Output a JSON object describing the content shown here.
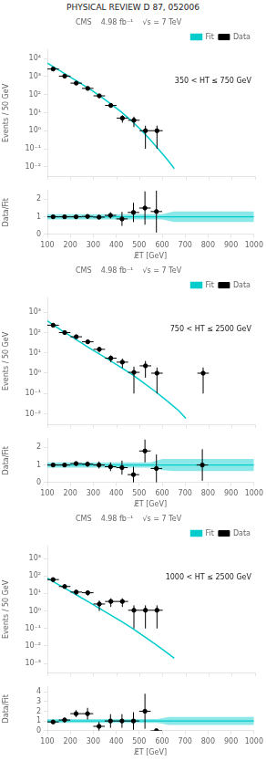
{
  "title": "PHYSICAL REVIEW D 87, 052006",
  "chart_data": [
    {
      "type": "scatter",
      "title": "CMS    4.98 fb⁻¹    √s = 7 TeV",
      "ylabel": "Events / 50 GeV",
      "annotation": "350 < HT ≤ 750 GeV",
      "log": "y",
      "legend": "upper right",
      "grid": false,
      "tick_labels": "y",
      "xlim": [
        100,
        1000
      ],
      "xticks": [
        100,
        200,
        300,
        400,
        500,
        600,
        700,
        800,
        900,
        1000
      ],
      "ylim": [
        0.003,
        30000
      ],
      "yticks": [
        {
          "value": 0.01,
          "label": "10⁻²"
        },
        {
          "value": 0.1,
          "label": "10⁻¹"
        },
        {
          "value": 1,
          "label": "10⁰"
        },
        {
          "value": 10,
          "label": "10¹"
        },
        {
          "value": 100,
          "label": "10²"
        },
        {
          "value": 1000,
          "label": "10³"
        },
        {
          "value": 10000,
          "label": "10⁴"
        }
      ],
      "series": [
        {
          "name": "Fit",
          "type": "line",
          "color": "#00CCCC",
          "x": [
            100,
            130,
            160,
            190,
            220,
            260,
            300,
            340,
            380,
            420,
            460,
            500,
            540,
            580,
            620,
            650
          ],
          "values": [
            5500,
            3200,
            1900,
            1100,
            640,
            310,
            145,
            65,
            27,
            11,
            4.0,
            1.3,
            0.38,
            0.1,
            0.025,
            0.008
          ]
        },
        {
          "name": "Data",
          "type": "scatter",
          "color": "black",
          "x": [
            125,
            175,
            225,
            275,
            325,
            375,
            425,
            475,
            525,
            575
          ],
          "values": [
            2600,
            1050,
            430,
            220,
            85,
            25,
            5.0,
            3.8,
            1.0,
            1.0
          ],
          "y_err_low": [
            120,
            55,
            28,
            18,
            11,
            4.5,
            2.2,
            2.2,
            0.9,
            0.9
          ],
          "y_err_high": [
            120,
            55,
            28,
            18,
            11,
            4.5,
            2.2,
            2.2,
            0.9,
            0.9
          ],
          "x_err": [
            25,
            25,
            25,
            25,
            25,
            25,
            25,
            25,
            25,
            25
          ]
        }
      ]
    },
    {
      "type": "scatter",
      "xlabel": "E̸T [GeV]",
      "ylabel": "Data/Fit",
      "grid": false,
      "xlim": [
        100,
        1000
      ],
      "xticks": [
        100,
        200,
        300,
        400,
        500,
        600,
        700,
        800,
        900,
        1000
      ],
      "ylim": [
        0,
        2.5
      ],
      "yticks": [
        0,
        1,
        2
      ],
      "series": [
        {
          "type": "band",
          "color": "#00CCCC",
          "x": [
            100,
            600,
            650,
            700,
            750,
            800,
            850,
            900,
            950,
            1000
          ],
          "low": [
            0.85,
            0.85,
            0.7,
            0.7,
            0.7,
            0.7,
            0.7,
            0.7,
            0.7,
            0.7
          ],
          "high": [
            1.15,
            1.15,
            1.3,
            1.3,
            1.3,
            1.3,
            1.3,
            1.3,
            1.3,
            1.3
          ]
        },
        {
          "type": "hline",
          "color": "#00CCCC",
          "values": [
            1.0
          ]
        },
        {
          "type": "scatter",
          "color": "black",
          "x": [
            125,
            175,
            225,
            275,
            325,
            375,
            425,
            475,
            525,
            575
          ],
          "values": [
            1.0,
            1.0,
            1.0,
            1.02,
            0.98,
            1.08,
            0.88,
            1.25,
            1.5,
            1.3
          ],
          "y_err_low": [
            0.05,
            0.05,
            0.06,
            0.08,
            0.12,
            0.18,
            0.4,
            0.55,
            0.95,
            1.2
          ],
          "y_err_high": [
            0.05,
            0.05,
            0.06,
            0.08,
            0.12,
            0.18,
            0.4,
            0.55,
            0.95,
            1.2
          ],
          "x_err": [
            25,
            25,
            25,
            25,
            25,
            25,
            25,
            25,
            25,
            25
          ]
        }
      ]
    },
    {
      "type": "scatter",
      "title": "CMS    4.98 fb⁻¹    √s = 7 TeV",
      "ylabel": "Events / 50 GeV",
      "annotation": "750 < HT ≤ 2500 GeV",
      "log": "y",
      "legend": "upper right",
      "grid": false,
      "tick_labels": "y",
      "xlim": [
        100,
        1000
      ],
      "xticks": [
        100,
        200,
        300,
        400,
        500,
        600,
        700,
        800,
        900,
        1000
      ],
      "ylim": [
        0.003,
        5000
      ],
      "yticks": [
        {
          "value": 0.01,
          "label": "10⁻²"
        },
        {
          "value": 0.1,
          "label": "10⁻¹"
        },
        {
          "value": 1,
          "label": "10⁰"
        },
        {
          "value": 10,
          "label": "10¹"
        },
        {
          "value": 100,
          "label": "10²"
        },
        {
          "value": 1000,
          "label": "10³"
        }
      ],
      "series": [
        {
          "name": "Fit",
          "type": "line",
          "color": "#00CCCC",
          "x": [
            100,
            130,
            160,
            200,
            240,
            280,
            320,
            370,
            420,
            470,
            520,
            570,
            620,
            670,
            700
          ],
          "values": [
            380,
            220,
            130,
            68,
            35,
            18,
            9.5,
            4.3,
            1.9,
            0.82,
            0.32,
            0.12,
            0.042,
            0.014,
            0.006
          ]
        },
        {
          "name": "Data",
          "type": "scatter",
          "color": "black",
          "x": [
            125,
            175,
            225,
            275,
            325,
            375,
            425,
            475,
            525,
            575,
            775
          ],
          "values": [
            230,
            100,
            62,
            35,
            15,
            5.5,
            3.5,
            1.1,
            2.3,
            1.0,
            1.0
          ],
          "y_err_low": [
            20,
            12,
            9,
            6.5,
            4.5,
            2.0,
            1.7,
            1.0,
            1.7,
            0.9,
            0.9
          ],
          "y_err_high": [
            20,
            12,
            9,
            6.5,
            4.5,
            2.0,
            1.7,
            1.0,
            1.7,
            0.9,
            0.9
          ],
          "x_err": [
            25,
            25,
            25,
            25,
            25,
            25,
            25,
            25,
            25,
            25,
            25
          ]
        }
      ]
    },
    {
      "type": "scatter",
      "xlabel": "E̸T [GeV]",
      "ylabel": "Data/Fit",
      "grid": false,
      "xlim": [
        100,
        1000
      ],
      "xticks": [
        100,
        200,
        300,
        400,
        500,
        600,
        700,
        800,
        900,
        1000
      ],
      "ylim": [
        0,
        2.5
      ],
      "yticks": [
        0,
        1,
        2
      ],
      "series": [
        {
          "type": "band",
          "color": "#00CCCC",
          "x": [
            100,
            550,
            600,
            650,
            700,
            750,
            800,
            850,
            900,
            950,
            1000
          ],
          "low": [
            0.85,
            0.85,
            0.7,
            0.65,
            0.65,
            0.65,
            0.65,
            0.65,
            0.65,
            0.65,
            0.65
          ],
          "high": [
            1.15,
            1.15,
            1.35,
            1.35,
            1.35,
            1.35,
            1.35,
            1.35,
            1.35,
            1.35,
            1.35
          ]
        },
        {
          "type": "hline",
          "color": "#00CCCC",
          "values": [
            1.0
          ]
        },
        {
          "type": "scatter",
          "color": "black",
          "x": [
            125,
            175,
            225,
            275,
            325,
            375,
            425,
            475,
            525,
            575,
            775
          ],
          "values": [
            1.0,
            1.0,
            1.08,
            1.05,
            1.0,
            0.9,
            0.85,
            0.45,
            1.8,
            0.8,
            1.0
          ],
          "y_err_low": [
            0.07,
            0.1,
            0.12,
            0.15,
            0.2,
            0.25,
            0.4,
            0.45,
            0.65,
            0.8,
            0.9
          ],
          "y_err_high": [
            0.07,
            0.1,
            0.12,
            0.15,
            0.2,
            0.25,
            0.4,
            0.45,
            0.65,
            0.8,
            0.9
          ],
          "x_err": [
            25,
            25,
            25,
            25,
            25,
            25,
            25,
            25,
            25,
            25,
            25
          ]
        }
      ]
    },
    {
      "type": "scatter",
      "title": "CMS    4.98 fb⁻¹    √s = 7 TeV",
      "ylabel": "Events / 50 GeV",
      "annotation": "1000 < HT ≤ 2500 GeV",
      "log": "y",
      "legend": "upper right",
      "grid": false,
      "tick_labels": "y",
      "xlim": [
        100,
        1000
      ],
      "xticks": [
        100,
        200,
        300,
        400,
        500,
        600,
        700,
        800,
        900,
        1000
      ],
      "ylim": [
        0.0003,
        5000
      ],
      "yticks": [
        {
          "value": 0.001,
          "label": "10⁻³"
        },
        {
          "value": 0.01,
          "label": "10⁻²"
        },
        {
          "value": 0.1,
          "label": "10⁻¹"
        },
        {
          "value": 1,
          "label": "10⁰"
        },
        {
          "value": 10,
          "label": "10¹"
        },
        {
          "value": 100,
          "label": "10²"
        },
        {
          "value": 1000,
          "label": "10³"
        }
      ],
      "series": [
        {
          "name": "Fit",
          "type": "line",
          "color": "#00CCCC",
          "x": [
            100,
            130,
            160,
            200,
            240,
            280,
            320,
            370,
            420,
            470,
            520,
            570,
            620,
            650
          ],
          "values": [
            75,
            44,
            26,
            13,
            6.5,
            3.2,
            1.55,
            0.64,
            0.26,
            0.098,
            0.035,
            0.012,
            0.004,
            0.002
          ]
        },
        {
          "name": "Data",
          "type": "scatter",
          "color": "black",
          "x": [
            125,
            175,
            225,
            275,
            325,
            375,
            425,
            475,
            525,
            575
          ],
          "values": [
            62,
            25,
            12,
            11,
            2.5,
            3.5,
            3.5,
            1.1,
            1.1,
            1.1
          ],
          "y_err_low": [
            11,
            5.5,
            4.0,
            3.5,
            1.5,
            1.8,
            1.8,
            1.0,
            1.0,
            1.0
          ],
          "y_err_high": [
            11,
            5.5,
            4.0,
            3.5,
            1.5,
            1.8,
            1.8,
            1.0,
            1.0,
            1.0
          ],
          "x_err": [
            25,
            25,
            25,
            25,
            25,
            25,
            25,
            25,
            25,
            25
          ]
        }
      ]
    },
    {
      "type": "scatter",
      "xlabel": "E̸T [GeV]",
      "ylabel": "Data/Fit",
      "grid": false,
      "xlim": [
        100,
        1000
      ],
      "xticks": [
        100,
        200,
        300,
        400,
        500,
        600,
        700,
        800,
        900,
        1000
      ],
      "ylim": [
        0,
        4.5
      ],
      "yticks": [
        0,
        1,
        2,
        3,
        4
      ],
      "series": [
        {
          "type": "band",
          "color": "#00CCCC",
          "x": [
            100,
            580,
            630,
            680,
            730,
            780,
            830,
            880,
            930,
            980,
            1000
          ],
          "low": [
            0.8,
            0.8,
            0.6,
            0.6,
            0.6,
            0.6,
            0.6,
            0.6,
            0.6,
            0.6,
            0.6
          ],
          "high": [
            1.2,
            1.2,
            1.4,
            1.4,
            1.4,
            1.4,
            1.4,
            1.4,
            1.4,
            1.4,
            1.4
          ]
        },
        {
          "type": "hline",
          "color": "#00CCCC",
          "values": [
            1.0
          ]
        },
        {
          "type": "scatter",
          "color": "black",
          "x": [
            125,
            175,
            225,
            275,
            325,
            375,
            425,
            475,
            525,
            575
          ],
          "values": [
            0.9,
            1.1,
            1.75,
            1.75,
            0.45,
            1.0,
            1.0,
            1.0,
            2.0,
            0.0
          ],
          "y_err_low": [
            0.15,
            0.25,
            0.35,
            0.6,
            0.45,
            0.7,
            0.7,
            0.9,
            1.8,
            0.0
          ],
          "y_err_high": [
            0.15,
            0.25,
            0.35,
            0.6,
            0.45,
            0.7,
            0.7,
            0.9,
            1.8,
            0.0
          ],
          "x_err": [
            25,
            25,
            25,
            25,
            25,
            25,
            25,
            25,
            25,
            25
          ]
        }
      ]
    }
  ]
}
